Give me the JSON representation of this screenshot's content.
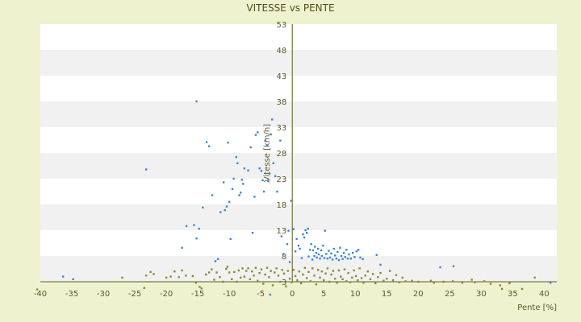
{
  "chart_data": {
    "type": "scatter",
    "title": "VITESSE vs PENTE",
    "xlabel": "Pente [%]",
    "ylabel": "Vitesse [km/h]",
    "xlim": [
      -40,
      42
    ],
    "ylim": [
      3,
      53
    ],
    "xticks": [
      -40,
      -35,
      -30,
      -25,
      -20,
      -15,
      -10,
      -5,
      0,
      5,
      10,
      15,
      20,
      25,
      30,
      35,
      40
    ],
    "yticks": [
      3,
      8,
      13,
      18,
      23,
      28,
      33,
      38,
      43,
      48,
      53
    ],
    "grid": "horizontal-bands",
    "legend": "none",
    "colors": {
      "blue": "#3b87d4",
      "olive": "#8a8a2e",
      "axis": "#5a5a1e",
      "band": "#f1f1f1",
      "background": "#eef2cf"
    },
    "series": [
      {
        "color": "blue",
        "points": [
          [
            -36.4,
            4.0
          ],
          [
            -34.8,
            3.5
          ],
          [
            -23.2,
            24.8
          ],
          [
            -15.2,
            38.0
          ],
          [
            -17.5,
            9.6
          ],
          [
            -16.8,
            13.8
          ],
          [
            -15.6,
            14.0
          ],
          [
            -15.2,
            11.4
          ],
          [
            -14.8,
            13.3
          ],
          [
            -14.2,
            17.4
          ],
          [
            -13.6,
            30.1
          ],
          [
            -13.2,
            29.3
          ],
          [
            -12.7,
            19.8
          ],
          [
            -12.2,
            7.0
          ],
          [
            -11.8,
            7.4
          ],
          [
            -11.4,
            16.5
          ],
          [
            -10.9,
            22.3
          ],
          [
            -10.7,
            16.9
          ],
          [
            -10.4,
            17.6
          ],
          [
            -10.2,
            30.0
          ],
          [
            -10.0,
            18.5
          ],
          [
            -9.8,
            11.3
          ],
          [
            -9.5,
            21.0
          ],
          [
            -9.3,
            23.0
          ],
          [
            -8.9,
            27.2
          ],
          [
            -8.7,
            26.0
          ],
          [
            -8.4,
            19.8
          ],
          [
            -8.2,
            20.3
          ],
          [
            -8.0,
            22.8
          ],
          [
            -7.8,
            22.0
          ],
          [
            -7.6,
            25.0
          ],
          [
            -7.0,
            24.6
          ],
          [
            -6.6,
            29.1
          ],
          [
            -6.3,
            12.5
          ],
          [
            -6.0,
            19.5
          ],
          [
            -5.8,
            31.5
          ],
          [
            -5.5,
            32.0
          ],
          [
            -5.2,
            25.0
          ],
          [
            -4.9,
            24.5
          ],
          [
            -4.7,
            22.7
          ],
          [
            -4.5,
            20.5
          ],
          [
            -4.3,
            30.4
          ],
          [
            -4.0,
            29.5
          ],
          [
            -3.8,
            22.5
          ],
          [
            -3.6,
            24.0
          ],
          [
            -3.4,
            31.6
          ],
          [
            -3.2,
            34.5
          ],
          [
            -3.0,
            26.0
          ],
          [
            -2.7,
            23.5
          ],
          [
            -2.4,
            20.5
          ],
          [
            -1.9,
            30.4
          ],
          [
            -1.7,
            11.8
          ],
          [
            -1.4,
            8.4
          ],
          [
            -0.8,
            10.3
          ],
          [
            -0.4,
            6.8
          ],
          [
            -3.5,
            0.5
          ],
          [
            -0.6,
            12.9
          ],
          [
            -0.2,
            18.7
          ],
          [
            0.2,
            13.2
          ],
          [
            0.5,
            8.9
          ],
          [
            0.7,
            11.3
          ],
          [
            1.0,
            10.0
          ],
          [
            1.2,
            9.4
          ],
          [
            1.5,
            7.6
          ],
          [
            1.7,
            12.2
          ],
          [
            1.9,
            11.6
          ],
          [
            2.1,
            13.0
          ],
          [
            2.3,
            12.5
          ],
          [
            2.5,
            13.3
          ],
          [
            2.6,
            7.9
          ],
          [
            2.8,
            9.2
          ],
          [
            3.0,
            10.3
          ],
          [
            3.2,
            7.3
          ],
          [
            3.3,
            9.1
          ],
          [
            3.5,
            8.0
          ],
          [
            3.6,
            9.8
          ],
          [
            3.8,
            8.6
          ],
          [
            3.9,
            7.7
          ],
          [
            4.1,
            9.4
          ],
          [
            4.2,
            8.3
          ],
          [
            4.4,
            7.5
          ],
          [
            4.6,
            9.1
          ],
          [
            4.7,
            8.0
          ],
          [
            4.9,
            10.0
          ],
          [
            5.1,
            7.6
          ],
          [
            5.2,
            12.9
          ],
          [
            5.4,
            8.4
          ],
          [
            5.6,
            7.5
          ],
          [
            5.8,
            9.0
          ],
          [
            6.0,
            7.7
          ],
          [
            6.2,
            8.5
          ],
          [
            6.4,
            7.3
          ],
          [
            6.6,
            9.4
          ],
          [
            6.8,
            8.1
          ],
          [
            7.0,
            7.5
          ],
          [
            7.2,
            8.8
          ],
          [
            7.4,
            7.2
          ],
          [
            7.6,
            9.6
          ],
          [
            7.8,
            8.0
          ],
          [
            8.0,
            7.4
          ],
          [
            8.2,
            8.6
          ],
          [
            8.4,
            7.8
          ],
          [
            8.6,
            9.2
          ],
          [
            8.8,
            7.5
          ],
          [
            9.0,
            8.3
          ],
          [
            9.3,
            7.5
          ],
          [
            9.6,
            8.6
          ],
          [
            9.9,
            7.8
          ],
          [
            10.2,
            8.9
          ],
          [
            10.5,
            9.2
          ],
          [
            10.8,
            7.7
          ],
          [
            11.2,
            7.4
          ],
          [
            13.4,
            8.2
          ],
          [
            14.0,
            6.3
          ],
          [
            23.5,
            5.8
          ],
          [
            25.6,
            6.0
          ],
          [
            41.0,
            2.8
          ]
        ]
      },
      {
        "color": "olive",
        "points": [
          [
            -40.5,
            1.5
          ],
          [
            -27.0,
            3.8
          ],
          [
            -23.5,
            1.8
          ],
          [
            -23.2,
            4.2
          ],
          [
            -22.5,
            4.9
          ],
          [
            -22.0,
            4.5
          ],
          [
            -20.0,
            3.8
          ],
          [
            -19.3,
            4.0
          ],
          [
            -18.7,
            5.0
          ],
          [
            -18.0,
            3.9
          ],
          [
            -17.5,
            5.2
          ],
          [
            -16.9,
            4.2
          ],
          [
            -15.8,
            4.1
          ],
          [
            -15.3,
            2.8
          ],
          [
            -14.7,
            2.0
          ],
          [
            -14.4,
            1.7
          ],
          [
            -13.7,
            4.4
          ],
          [
            -13.2,
            4.8
          ],
          [
            -12.8,
            5.4
          ],
          [
            -12.4,
            3.4
          ],
          [
            -12.0,
            4.8
          ],
          [
            -11.5,
            3.9
          ],
          [
            -11.0,
            3.0
          ],
          [
            -10.5,
            5.5
          ],
          [
            -10.3,
            5.9
          ],
          [
            -10.0,
            4.8
          ],
          [
            -9.6,
            3.5
          ],
          [
            -9.2,
            4.9
          ],
          [
            -8.8,
            3.0
          ],
          [
            -8.5,
            5.2
          ],
          [
            -8.2,
            3.8
          ],
          [
            -7.9,
            5.6
          ],
          [
            -7.6,
            4.0
          ],
          [
            -7.3,
            5.1
          ],
          [
            -7.0,
            5.6
          ],
          [
            -6.7,
            3.5
          ],
          [
            -6.4,
            5.0
          ],
          [
            -6.1,
            4.2
          ],
          [
            -5.8,
            5.7
          ],
          [
            -5.5,
            3.2
          ],
          [
            -5.2,
            4.7
          ],
          [
            -4.9,
            5.4
          ],
          [
            -4.6,
            2.6
          ],
          [
            -4.3,
            4.4
          ],
          [
            -4.0,
            5.7
          ],
          [
            -3.7,
            3.9
          ],
          [
            -3.4,
            5.1
          ],
          [
            -3.1,
            2.3
          ],
          [
            -2.8,
            4.8
          ],
          [
            -2.5,
            5.6
          ],
          [
            -2.2,
            4.2
          ],
          [
            -1.9,
            3.0
          ],
          [
            -1.6,
            5.3
          ],
          [
            -1.3,
            4.6
          ],
          [
            -1.0,
            2.1
          ],
          [
            -0.7,
            5.1
          ],
          [
            -0.4,
            3.6
          ],
          [
            -0.1,
            2.9
          ],
          [
            0.2,
            5.3
          ],
          [
            0.5,
            4.1
          ],
          [
            0.8,
            3.3
          ],
          [
            1.1,
            5.0
          ],
          [
            1.4,
            2.7
          ],
          [
            1.7,
            4.4
          ],
          [
            2.0,
            5.7
          ],
          [
            2.3,
            3.7
          ],
          [
            2.6,
            4.9
          ],
          [
            2.9,
            3.1
          ],
          [
            3.2,
            5.6
          ],
          [
            3.5,
            4.2
          ],
          [
            3.8,
            2.5
          ],
          [
            4.1,
            5.3
          ],
          [
            4.4,
            3.8
          ],
          [
            4.7,
            5.0
          ],
          [
            5.0,
            3.3
          ],
          [
            5.3,
            4.6
          ],
          [
            5.6,
            5.6
          ],
          [
            5.9,
            3.0
          ],
          [
            6.2,
            4.4
          ],
          [
            6.5,
            5.1
          ],
          [
            6.8,
            3.6
          ],
          [
            7.1,
            2.8
          ],
          [
            7.4,
            5.2
          ],
          [
            7.7,
            4.0
          ],
          [
            8.0,
            3.5
          ],
          [
            8.3,
            5.4
          ],
          [
            8.6,
            3.1
          ],
          [
            8.9,
            4.7
          ],
          [
            9.2,
            2.9
          ],
          [
            9.5,
            3.8
          ],
          [
            9.8,
            5.2
          ],
          [
            10.1,
            4.1
          ],
          [
            10.4,
            3.3
          ],
          [
            10.7,
            5.6
          ],
          [
            11.0,
            3.7
          ],
          [
            11.3,
            2.8
          ],
          [
            11.6,
            4.2
          ],
          [
            12.0,
            5.0
          ],
          [
            12.4,
            3.5
          ],
          [
            12.8,
            4.5
          ],
          [
            13.2,
            2.7
          ],
          [
            13.6,
            3.9
          ],
          [
            14.0,
            4.7
          ],
          [
            14.5,
            3.2
          ],
          [
            15.0,
            3.6
          ],
          [
            15.5,
            5.1
          ],
          [
            16.0,
            3.3
          ],
          [
            16.5,
            4.3
          ],
          [
            17.0,
            2.9
          ],
          [
            17.5,
            3.8
          ],
          [
            18.0,
            3.1
          ],
          [
            19.0,
            3.2
          ],
          [
            20.0,
            3.0
          ],
          [
            22.0,
            3.2
          ],
          [
            22.5,
            2.8
          ],
          [
            24.0,
            3.0
          ],
          [
            25.5,
            3.1
          ],
          [
            27.0,
            2.8
          ],
          [
            28.5,
            3.4
          ],
          [
            29.0,
            2.9
          ],
          [
            30.5,
            3.1
          ],
          [
            31.5,
            2.6
          ],
          [
            33.0,
            2.3
          ],
          [
            33.3,
            1.6
          ],
          [
            34.5,
            2.7
          ],
          [
            36.5,
            1.6
          ],
          [
            38.5,
            3.8
          ]
        ]
      }
    ]
  }
}
